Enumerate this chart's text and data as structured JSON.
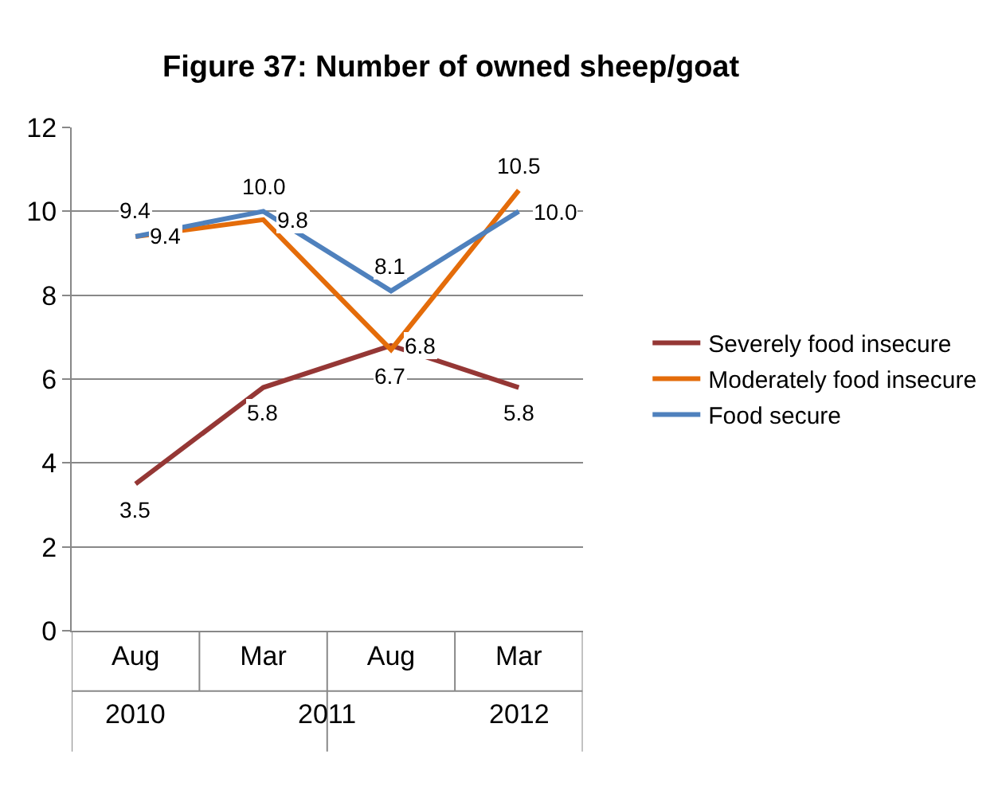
{
  "chart_data": {
    "type": "line",
    "title": "Figure 37: Number of owned sheep/goat",
    "categories": [
      "Aug",
      "Mar",
      "Aug",
      "Mar"
    ],
    "annotations": [
      "2010",
      "2011",
      "2012"
    ],
    "series": [
      {
        "name": "Severely food insecure",
        "color": "#953735",
        "values": [
          3.5,
          5.8,
          6.8,
          5.8
        ],
        "value_labels": [
          "3.5",
          "5.8",
          "6.8",
          "5.8"
        ]
      },
      {
        "name": "Moderately food insecure",
        "color": "#e46c0a",
        "values": [
          9.4,
          9.8,
          6.7,
          10.5
        ],
        "value_labels": [
          "9.4",
          "9.8",
          "6.7",
          "10.5"
        ]
      },
      {
        "name": "Food secure",
        "color": "#4f81bd",
        "values": [
          9.4,
          10.0,
          8.1,
          10.0
        ],
        "value_labels": [
          "9.4",
          "10.0",
          "8.1",
          "10.0"
        ]
      }
    ],
    "ylim": [
      0,
      12
    ],
    "yticks": [
      0,
      2,
      4,
      6,
      8,
      10,
      12
    ],
    "grid": "y",
    "legend": "right",
    "marker": "none",
    "line_style": "solid"
  }
}
